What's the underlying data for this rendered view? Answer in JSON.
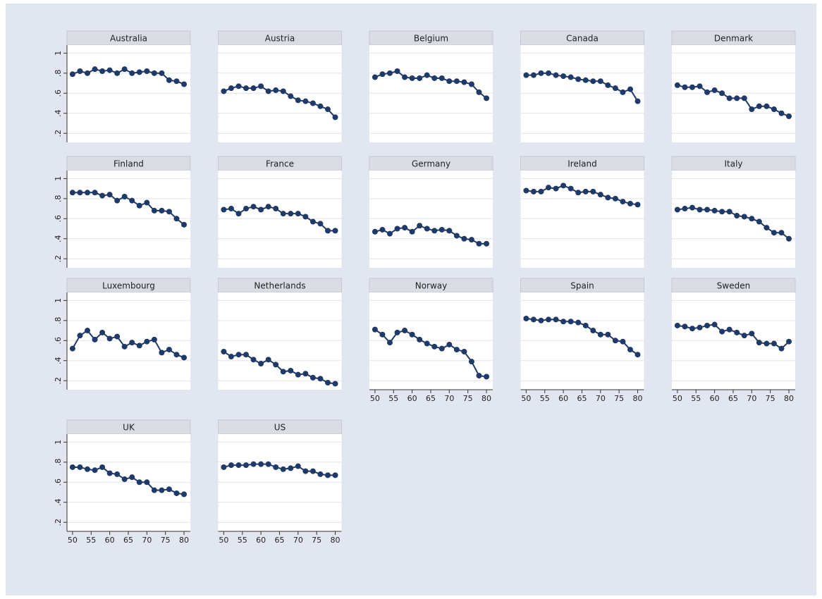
{
  "chart_data": {
    "type": "line",
    "color": "#1f3a68",
    "grid": true,
    "x": [
      50,
      52,
      54,
      56,
      58,
      60,
      62,
      64,
      66,
      68,
      70,
      72,
      74,
      76,
      78,
      80
    ],
    "xlim": [
      48.5,
      81.7
    ],
    "xticks": [
      50,
      55,
      60,
      65,
      70,
      75,
      80
    ],
    "ylim": [
      0.11,
      1.08
    ],
    "yticks": [
      {
        "value": 0.2,
        "label": ".2"
      },
      {
        "value": 0.4,
        "label": ".4"
      },
      {
        "value": 0.6,
        "label": ".6"
      },
      {
        "value": 0.8,
        "label": ".8"
      },
      1
    ],
    "panels": [
      {
        "title": "Australia",
        "values": [
          0.79,
          0.82,
          0.8,
          0.84,
          0.82,
          0.83,
          0.8,
          0.84,
          0.8,
          0.81,
          0.82,
          0.8,
          0.8,
          0.73,
          0.72,
          0.69
        ]
      },
      {
        "title": "Austria",
        "values": [
          0.62,
          0.65,
          0.67,
          0.65,
          0.65,
          0.67,
          0.62,
          0.63,
          0.62,
          0.57,
          0.53,
          0.52,
          0.5,
          0.47,
          0.44,
          0.36
        ]
      },
      {
        "title": "Belgium",
        "values": [
          0.76,
          0.79,
          0.8,
          0.82,
          0.76,
          0.75,
          0.75,
          0.78,
          0.75,
          0.75,
          0.72,
          0.72,
          0.71,
          0.69,
          0.61,
          0.55
        ]
      },
      {
        "title": "Canada",
        "values": [
          0.78,
          0.78,
          0.8,
          0.8,
          0.78,
          0.77,
          0.76,
          0.74,
          0.73,
          0.72,
          0.72,
          0.68,
          0.65,
          0.61,
          0.64,
          0.52
        ]
      },
      {
        "title": "Denmark",
        "values": [
          0.68,
          0.66,
          0.66,
          0.67,
          0.61,
          0.63,
          0.6,
          0.55,
          0.55,
          0.55,
          0.44,
          0.47,
          0.47,
          0.44,
          0.4,
          0.37
        ]
      },
      {
        "title": "Finland",
        "values": [
          0.86,
          0.86,
          0.86,
          0.86,
          0.83,
          0.84,
          0.78,
          0.82,
          0.78,
          0.73,
          0.76,
          0.68,
          0.68,
          0.67,
          0.6,
          0.54
        ]
      },
      {
        "title": "France",
        "values": [
          0.69,
          0.7,
          0.65,
          0.7,
          0.72,
          0.69,
          0.72,
          0.7,
          0.65,
          0.65,
          0.65,
          0.62,
          0.57,
          0.55,
          0.48,
          0.48
        ]
      },
      {
        "title": "Germany",
        "values": [
          0.47,
          0.49,
          0.45,
          0.5,
          0.51,
          0.47,
          0.53,
          0.5,
          0.48,
          0.49,
          0.48,
          0.43,
          0.4,
          0.39,
          0.35,
          0.35
        ]
      },
      {
        "title": "Ireland",
        "values": [
          0.88,
          0.87,
          0.87,
          0.91,
          0.9,
          0.93,
          0.9,
          0.86,
          0.87,
          0.87,
          0.84,
          0.81,
          0.8,
          0.77,
          0.75,
          0.74
        ]
      },
      {
        "title": "Italy",
        "values": [
          0.69,
          0.7,
          0.71,
          0.69,
          0.69,
          0.68,
          0.67,
          0.67,
          0.63,
          0.62,
          0.6,
          0.57,
          0.51,
          0.46,
          0.46,
          0.4
        ]
      },
      {
        "title": "Luxembourg",
        "values": [
          0.52,
          0.65,
          0.7,
          0.61,
          0.68,
          0.62,
          0.64,
          0.54,
          0.58,
          0.55,
          0.59,
          0.61,
          0.48,
          0.51,
          0.46,
          0.43
        ]
      },
      {
        "title": "Netherlands",
        "values": [
          0.49,
          0.44,
          0.46,
          0.46,
          0.41,
          0.37,
          0.41,
          0.36,
          0.29,
          0.3,
          0.26,
          0.27,
          0.23,
          0.22,
          0.18,
          0.17
        ]
      },
      {
        "title": "Norway",
        "values": [
          0.71,
          0.66,
          0.58,
          0.68,
          0.7,
          0.66,
          0.61,
          0.57,
          0.54,
          0.52,
          0.56,
          0.51,
          0.49,
          0.39,
          0.25,
          0.24
        ]
      },
      {
        "title": "Spain",
        "values": [
          0.82,
          0.81,
          0.8,
          0.81,
          0.81,
          0.79,
          0.79,
          0.78,
          0.75,
          0.7,
          0.66,
          0.66,
          0.6,
          0.59,
          0.51,
          0.46
        ]
      },
      {
        "title": "Sweden",
        "values": [
          0.75,
          0.74,
          0.72,
          0.73,
          0.75,
          0.76,
          0.69,
          0.71,
          0.68,
          0.65,
          0.67,
          0.58,
          0.57,
          0.57,
          0.52,
          0.59
        ]
      },
      {
        "title": "UK",
        "values": [
          0.75,
          0.75,
          0.73,
          0.72,
          0.75,
          0.69,
          0.68,
          0.63,
          0.65,
          0.6,
          0.6,
          0.52,
          0.52,
          0.53,
          0.49,
          0.48
        ]
      },
      {
        "title": "US",
        "values": [
          0.75,
          0.77,
          0.77,
          0.77,
          0.78,
          0.78,
          0.78,
          0.75,
          0.73,
          0.74,
          0.76,
          0.71,
          0.71,
          0.68,
          0.67,
          0.67
        ]
      }
    ]
  }
}
